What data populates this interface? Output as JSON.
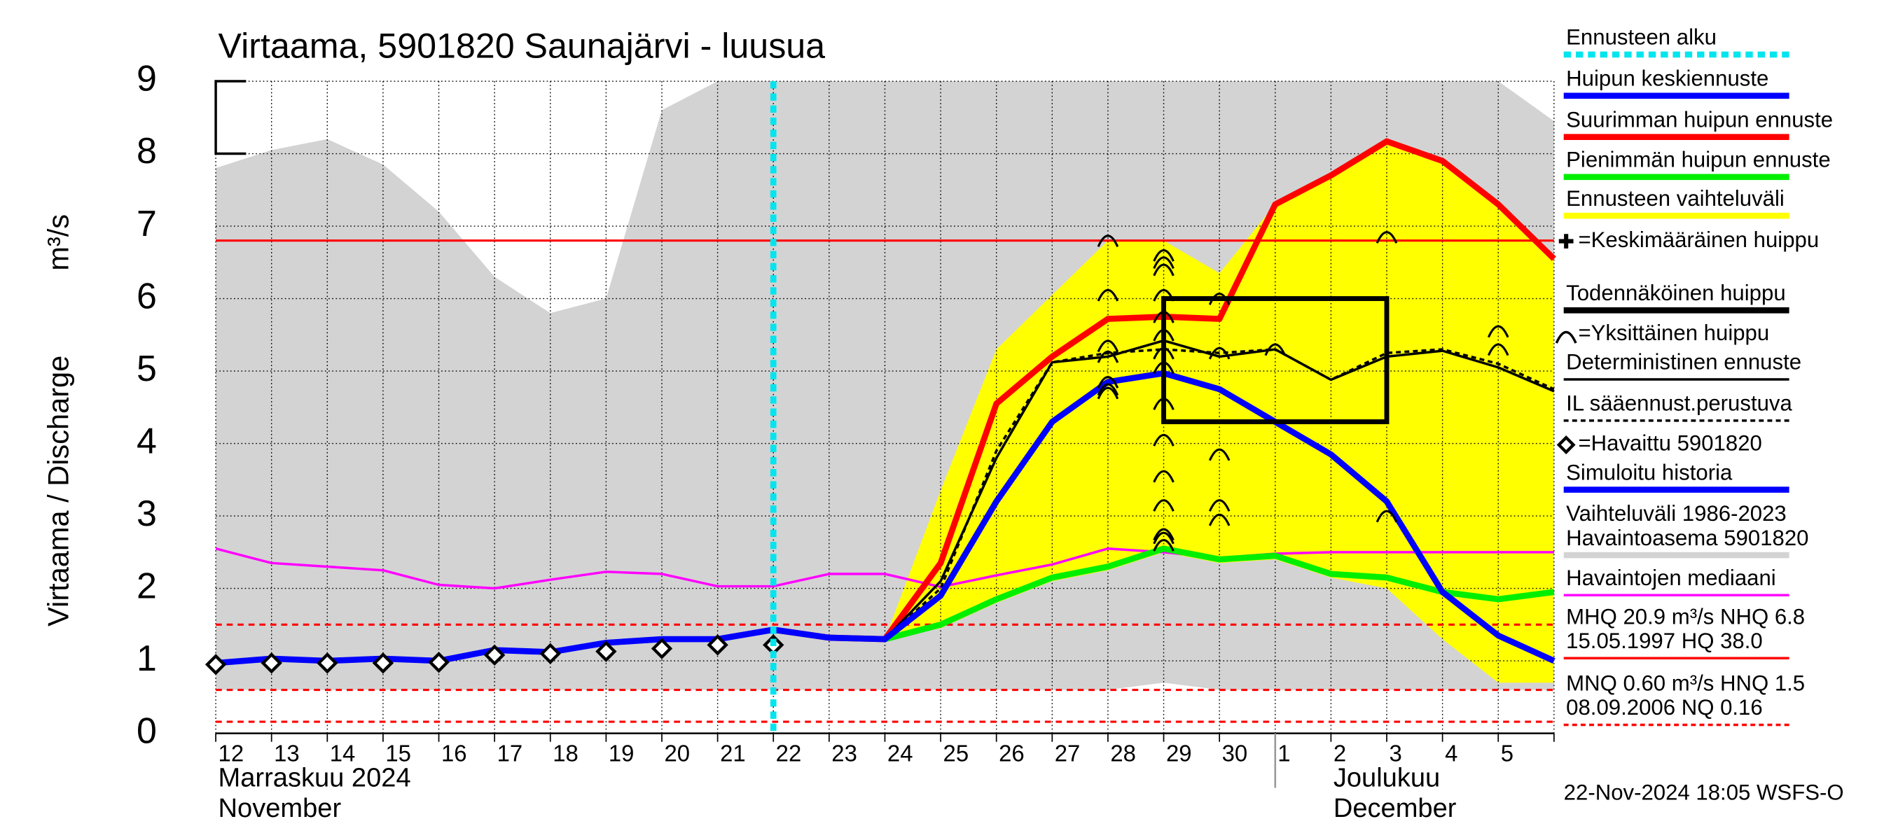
{
  "chart_data": {
    "type": "hydrograph",
    "title": "Virtaama, 5901820 Saunajärvi - luusua",
    "ylabel": "Virtaama / Discharge",
    "yunit": "m³/s",
    "ylim": [
      0,
      9
    ],
    "yticks": [
      0,
      1,
      2,
      3,
      4,
      5,
      6,
      7,
      8,
      9
    ],
    "grid": true,
    "categories": [
      "12",
      "13",
      "14",
      "15",
      "16",
      "17",
      "18",
      "19",
      "20",
      "21",
      "22",
      "23",
      "24",
      "25",
      "26",
      "27",
      "28",
      "29",
      "30",
      "1",
      "2",
      "3",
      "4",
      "5",
      null
    ],
    "months": [
      {
        "x": 0,
        "lines": [
          "Marraskuu 2024",
          "November"
        ]
      },
      {
        "x": 20,
        "lines": [
          "Joulukuu",
          "December"
        ]
      }
    ],
    "forecast_start": 10,
    "series": [
      {
        "style": "band",
        "color": "#d3d3d3",
        "upper": [
          7.8,
          8.05,
          8.2,
          7.85,
          7.2,
          6.3,
          5.8,
          6.0,
          8.6,
          9,
          9,
          9,
          9,
          9,
          9,
          9,
          9,
          9,
          9,
          9,
          9,
          9,
          9,
          9,
          8.45
        ],
        "lower": [
          0.6,
          0.6,
          0.6,
          0.6,
          0.6,
          0.6,
          0.6,
          0.6,
          0.6,
          0.6,
          0.6,
          0.6,
          0.6,
          0.6,
          0.6,
          0.6,
          0.6,
          0.7,
          0.6,
          0.6,
          0.6,
          0.6,
          0.6,
          0.6,
          0.6
        ]
      },
      {
        "style": "band",
        "color": "#ffff00",
        "upper": [
          null,
          null,
          null,
          null,
          null,
          null,
          null,
          null,
          null,
          null,
          null,
          null,
          1.3,
          3.35,
          5.3,
          6.05,
          6.8,
          6.8,
          6.35,
          7.3,
          7.7,
          8.17,
          7.9,
          7.3,
          6.55
        ],
        "lower": [
          null,
          null,
          null,
          null,
          null,
          null,
          null,
          null,
          null,
          null,
          null,
          null,
          1.3,
          1.45,
          1.8,
          2.1,
          2.25,
          2.5,
          2.35,
          2.4,
          2.15,
          2.0,
          1.3,
          0.7,
          0.7
        ]
      },
      {
        "style": "line",
        "color": "#ff00ff",
        "values": [
          2.55,
          2.35,
          2.3,
          2.25,
          2.05,
          2.0,
          2.12,
          2.23,
          2.2,
          2.03,
          2.03,
          2.2,
          2.2,
          2.02,
          2.18,
          2.33,
          2.55,
          2.5,
          2.42,
          2.48,
          2.5,
          2.5,
          2.5,
          2.5,
          2.5
        ]
      },
      {
        "style": "thick",
        "color": "#00ee00",
        "values": [
          null,
          null,
          null,
          null,
          null,
          null,
          null,
          null,
          null,
          null,
          null,
          null,
          1.3,
          1.5,
          1.85,
          2.15,
          2.3,
          2.55,
          2.4,
          2.45,
          2.2,
          2.15,
          1.95,
          1.85,
          1.95
        ]
      },
      {
        "style": "thick",
        "color": "#ff0000",
        "values": [
          null,
          null,
          null,
          null,
          null,
          null,
          null,
          null,
          null,
          null,
          1.43,
          1.32,
          1.3,
          2.35,
          4.55,
          5.2,
          5.72,
          5.75,
          5.72,
          7.3,
          7.7,
          8.17,
          7.9,
          7.3,
          6.55
        ]
      },
      {
        "style": "dashed",
        "color": "#000000",
        "values": [
          null,
          null,
          null,
          null,
          null,
          null,
          null,
          null,
          null,
          null,
          null,
          null,
          1.3,
          2.0,
          3.9,
          5.12,
          5.25,
          5.3,
          5.25,
          5.3,
          4.88,
          5.25,
          5.3,
          5.1,
          4.75
        ]
      },
      {
        "style": "line",
        "color": "#000000",
        "values": [
          null,
          null,
          null,
          null,
          null,
          null,
          null,
          null,
          null,
          null,
          null,
          null,
          1.3,
          2.1,
          3.8,
          5.12,
          5.2,
          5.42,
          5.2,
          5.3,
          4.88,
          5.2,
          5.28,
          5.05,
          4.72
        ]
      },
      {
        "style": "thick",
        "color": "#0000ff",
        "values": [
          0.97,
          1.03,
          1.0,
          1.03,
          1.0,
          1.15,
          1.12,
          1.25,
          1.3,
          1.3,
          1.43,
          null,
          null,
          null,
          null,
          null,
          null,
          null,
          null,
          null,
          null,
          null,
          null,
          null,
          null
        ]
      },
      {
        "style": "thick",
        "color": "#0000ff",
        "values": [
          null,
          null,
          null,
          null,
          null,
          null,
          null,
          null,
          null,
          null,
          1.43,
          1.32,
          1.3,
          1.9,
          3.2,
          4.3,
          4.85,
          4.97,
          4.75,
          4.3,
          3.85,
          3.2,
          1.95,
          1.35,
          1.0
        ]
      },
      {
        "style": "diamond",
        "color": "#000000",
        "values": [
          0.95,
          0.97,
          0.97,
          0.97,
          0.98,
          1.08,
          1.1,
          1.13,
          1.17,
          1.22,
          1.22,
          null,
          null,
          null,
          null,
          null,
          null,
          null,
          null,
          null,
          null,
          null,
          null,
          null,
          null
        ]
      }
    ],
    "peaks": {
      "color": "#000000",
      "x": [
        16,
        16,
        16,
        16,
        16,
        16,
        16,
        17,
        17,
        17,
        17,
        17,
        17,
        17,
        17,
        17,
        17,
        17,
        17,
        17,
        17,
        17,
        18,
        18,
        18,
        18,
        18,
        19,
        21,
        21,
        23,
        23
      ],
      "values": [
        6.8,
        6.05,
        5.35,
        5.2,
        4.85,
        4.75,
        4.7,
        6.6,
        6.5,
        6.4,
        6.05,
        5.75,
        5.5,
        5.25,
        5.05,
        4.55,
        4.05,
        3.55,
        3.15,
        2.75,
        2.7,
        2.6,
        6.0,
        5.25,
        3.85,
        3.15,
        2.95,
        5.3,
        6.85,
        3.0,
        5.55,
        5.3
      ]
    },
    "probable_peak": {
      "color": "#000000",
      "x": [
        17,
        21
      ],
      "values": [
        4.3,
        6.0
      ]
    },
    "reference_lines": [
      {
        "value": 6.8,
        "color": "#ff0000",
        "dashed": false
      },
      {
        "value": 1.5,
        "color": "#ff0000",
        "dashed": true
      },
      {
        "value": 0.6,
        "color": "#ff0000",
        "dashed": true
      },
      {
        "value": 0.16,
        "color": "#ff0000",
        "dashed": true
      }
    ],
    "legend": [
      {
        "lines": [
          "Ennusteen alku"
        ],
        "color": "#00e5ee",
        "style": "dashed-thick"
      },
      {
        "lines": [
          "Huipun keskiennuste"
        ],
        "color": "#0000ff",
        "style": "thick"
      },
      {
        "lines": [
          "Suurimman huipun ennuste"
        ],
        "color": "#ff0000",
        "style": "thick"
      },
      {
        "lines": [
          "Pienimmän huipun ennuste"
        ],
        "color": "#00ee00",
        "style": "thick"
      },
      {
        "lines": [
          "Ennusteen vaihteluväli"
        ],
        "color": "#ffff00",
        "style": "thick"
      },
      {
        "lines": [
          "=Keskimääräinen huippu"
        ],
        "color": "#000000",
        "style": "plus"
      },
      {
        "lines": [
          "Todennäköinen huippu"
        ],
        "color": "#000000",
        "style": "thick"
      },
      {
        "lines": [
          "=Yksittäinen huippu"
        ],
        "color": "#000000",
        "style": "arc"
      },
      {
        "lines": [
          "Deterministinen ennuste"
        ],
        "color": "#000000",
        "style": "line"
      },
      {
        "lines": [
          "IL sääennust.perustuva"
        ],
        "color": "#000000",
        "style": "dashed"
      },
      {
        "lines": [
          "=Havaittu 5901820"
        ],
        "color": "#000000",
        "style": "diamond"
      },
      {
        "lines": [
          "Simuloitu historia"
        ],
        "color": "#0000ff",
        "style": "thick"
      },
      {
        "lines": [
          "Vaihteluväli 1986-2023",
          " Havaintoasema 5901820"
        ],
        "color": "#d3d3d3",
        "style": "thick"
      },
      {
        "lines": [
          "Havaintojen mediaani"
        ],
        "color": "#ff00ff",
        "style": "line"
      },
      {
        "lines": [
          "MHQ 20.9 m³/s NHQ  6.8",
          "15.05.1997 HQ 38.0"
        ],
        "color": "#ff0000",
        "style": "line"
      },
      {
        "lines": [
          "MNQ 0.60 m³/s HNQ  1.5",
          "08.09.2006 NQ 0.16"
        ],
        "color": "#ff0000",
        "style": "dashed"
      }
    ],
    "timestamp": "22-Nov-2024 18:05 WSFS-O"
  }
}
